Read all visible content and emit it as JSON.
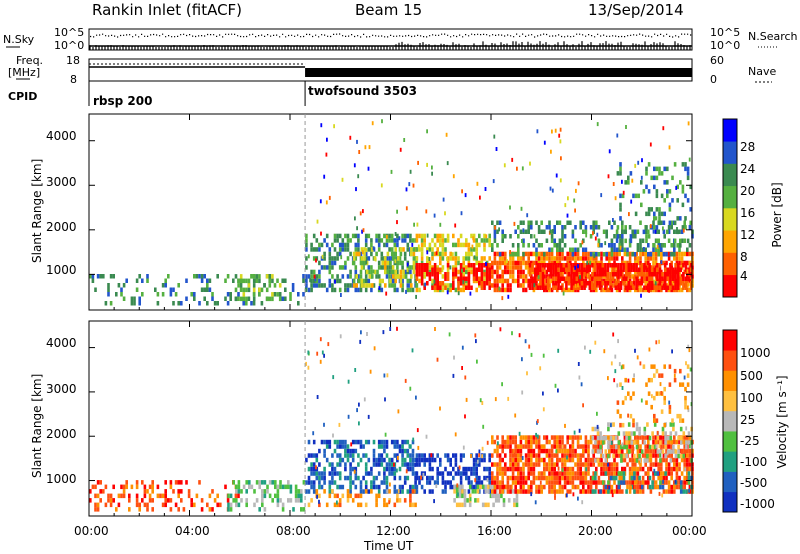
{
  "header": {
    "station": "Rankin Inlet (fitACF)",
    "beam": "Beam 15",
    "date": "13/Sep/2014"
  },
  "colors": {
    "power_scale": [
      "#0000ff",
      "#2255cc",
      "#3a8a50",
      "#55b040",
      "#d8d820",
      "#ffa500",
      "#ff6000",
      "#ff0000"
    ],
    "velocity_scale": [
      "#1030c0",
      "#2060c0",
      "#20a080",
      "#50c040",
      "#b8b8b8",
      "#ffc040",
      "#ff9000",
      "#ff5010",
      "#ff0000"
    ],
    "ground_scatter": "#b8b8b8"
  },
  "params": {
    "nsky_label": "N.Sky",
    "nsky_ticks": [
      "10^5",
      "10^0"
    ],
    "nsearch_label": "N.Search",
    "nsearch_ticks": [
      "10^5",
      "10^0"
    ],
    "freq_label_1": "Freq.",
    "freq_label_2": "[MHz]",
    "freq_ticks": [
      "18",
      "8"
    ],
    "nave_label": "Nave",
    "nave_ticks": [
      "60",
      "0"
    ],
    "cpid_label": "CPID",
    "cpid_segments": [
      {
        "name": "rbsp 200",
        "start_hour": 0,
        "end_hour": 8.6
      },
      {
        "name": "twofsound 3503",
        "start_hour": 8.6,
        "end_hour": 24
      }
    ]
  },
  "chart_data": [
    {
      "type": "heatmap",
      "panel": "power",
      "ylabel": "Slant Range [km]",
      "xlabel": "",
      "x_ticks": [
        "00:00",
        "04:00",
        "08:00",
        "12:00",
        "16:00",
        "20:00",
        "00:00"
      ],
      "x_tick_hours": [
        0,
        4,
        8,
        12,
        16,
        20,
        24
      ],
      "y_ticks": [
        1000,
        2000,
        3000,
        4000
      ],
      "ylim": [
        200,
        4600
      ],
      "xlim_hours": [
        0,
        24
      ],
      "colorbar_label": "Power [dB]",
      "colorbar_ticks": [
        "28",
        "24",
        "20",
        "16",
        "12",
        "8",
        "4"
      ],
      "colorbar_range": [
        0,
        32
      ],
      "regions": [
        {
          "t0": 0.0,
          "t1": 8.6,
          "r0": 300,
          "r1": 1000,
          "level": 2,
          "density": 0.25
        },
        {
          "t0": 5.8,
          "t1": 7.6,
          "r0": 400,
          "r1": 1000,
          "level": 3,
          "density": 0.35
        },
        {
          "t0": 8.6,
          "t1": 13.0,
          "r0": 600,
          "r1": 1900,
          "level": 2,
          "density": 0.5
        },
        {
          "t0": 10.5,
          "t1": 13.0,
          "r0": 700,
          "r1": 1600,
          "level": 4,
          "density": 0.35
        },
        {
          "t0": 13.0,
          "t1": 16.0,
          "r0": 600,
          "r1": 1900,
          "level": 4,
          "density": 0.55
        },
        {
          "t0": 13.0,
          "t1": 16.0,
          "r0": 650,
          "r1": 1200,
          "level": 7,
          "density": 0.6
        },
        {
          "t0": 16.0,
          "t1": 24.0,
          "r0": 600,
          "r1": 1500,
          "level": 6,
          "density": 0.75
        },
        {
          "t0": 17.5,
          "t1": 24.0,
          "r0": 650,
          "r1": 1200,
          "level": 7,
          "density": 0.8
        },
        {
          "t0": 16.0,
          "t1": 24.0,
          "r0": 1400,
          "r1": 2200,
          "level": 2,
          "density": 0.35
        },
        {
          "t0": 21.0,
          "t1": 24.0,
          "r0": 1600,
          "r1": 3500,
          "level": 2,
          "density": 0.2
        }
      ]
    },
    {
      "type": "heatmap",
      "panel": "velocity",
      "ylabel": "Slant Range [km]",
      "xlabel": "Time UT",
      "x_ticks": [
        "00:00",
        "04:00",
        "08:00",
        "12:00",
        "16:00",
        "20:00",
        "00:00"
      ],
      "x_tick_hours": [
        0,
        4,
        8,
        12,
        16,
        20,
        24
      ],
      "y_ticks": [
        1000,
        2000,
        3000,
        4000
      ],
      "ylim": [
        200,
        4600
      ],
      "xlim_hours": [
        0,
        24
      ],
      "colorbar_label": "Velocity [m s⁻¹]",
      "colorbar_ticks": [
        "1000",
        "500",
        "100",
        "25",
        "-25",
        "-100",
        "-500",
        "-1000"
      ],
      "regions": [
        {
          "t0": 0.0,
          "t1": 6.0,
          "r0": 300,
          "r1": 1000,
          "level": 7,
          "density": 0.3
        },
        {
          "t0": 5.5,
          "t1": 8.6,
          "r0": 300,
          "r1": 1000,
          "level": 3,
          "density": 0.4
        },
        {
          "t0": 8.6,
          "t1": 13.0,
          "r0": 700,
          "r1": 1900,
          "level": 1,
          "density": 0.5
        },
        {
          "t0": 8.6,
          "t1": 13.0,
          "r0": 400,
          "r1": 800,
          "level": 6,
          "density": 0.3
        },
        {
          "t0": 13.0,
          "t1": 16.0,
          "r0": 700,
          "r1": 1600,
          "level": 0,
          "density": 0.55
        },
        {
          "t0": 14.5,
          "t1": 17.0,
          "r0": 400,
          "r1": 900,
          "level": 4,
          "density": 0.6
        },
        {
          "t0": 16.0,
          "t1": 24.0,
          "r0": 700,
          "r1": 2000,
          "level": 7,
          "density": 0.75
        },
        {
          "t0": 20.0,
          "t1": 24.0,
          "r0": 1400,
          "r1": 2300,
          "level": 4,
          "density": 0.35
        },
        {
          "t0": 20.0,
          "t1": 24.0,
          "r0": 700,
          "r1": 1200,
          "level": 2,
          "density": 0.3
        },
        {
          "t0": 21.0,
          "t1": 24.0,
          "r0": 2200,
          "r1": 3600,
          "level": 6,
          "density": 0.15
        }
      ]
    }
  ]
}
